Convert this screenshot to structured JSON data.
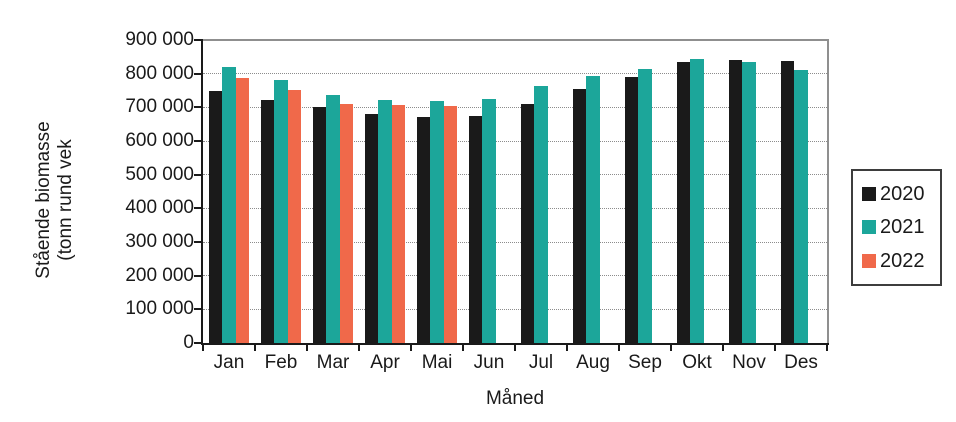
{
  "chart_data": {
    "type": "bar",
    "title": "",
    "xlabel": "Måned",
    "ylabel_line1": "Stående biomasse",
    "ylabel_line2": "(tonn rund vek",
    "ylim": [
      0,
      900000
    ],
    "ytick_step": 100000,
    "ytick_labels": [
      "900 000",
      "800 000",
      "700 000",
      "600 000",
      "500 000",
      "400 000",
      "300 000",
      "200 000",
      "100 000",
      "0"
    ],
    "grid": "horizontal-dotted",
    "legend_position": "right",
    "categories": [
      "Jan",
      "Feb",
      "Mar",
      "Apr",
      "Mai",
      "Jun",
      "Jul",
      "Aug",
      "Sep",
      "Okt",
      "Nov",
      "Des"
    ],
    "series": [
      {
        "name": "2020",
        "color": "#1a1a1a",
        "values": [
          750000,
          722000,
          700000,
          680000,
          670000,
          675000,
          710000,
          755000,
          790000,
          835000,
          840000,
          837000
        ]
      },
      {
        "name": "2021",
        "color": "#1ca69a",
        "values": [
          820000,
          782000,
          738000,
          721000,
          720000,
          726000,
          762000,
          792000,
          814000,
          845000,
          834000,
          812000
        ]
      },
      {
        "name": "2022",
        "color": "#f0694a",
        "values": [
          787000,
          752000,
          710000,
          706000,
          705000,
          null,
          null,
          null,
          null,
          null,
          null,
          null
        ]
      }
    ]
  }
}
